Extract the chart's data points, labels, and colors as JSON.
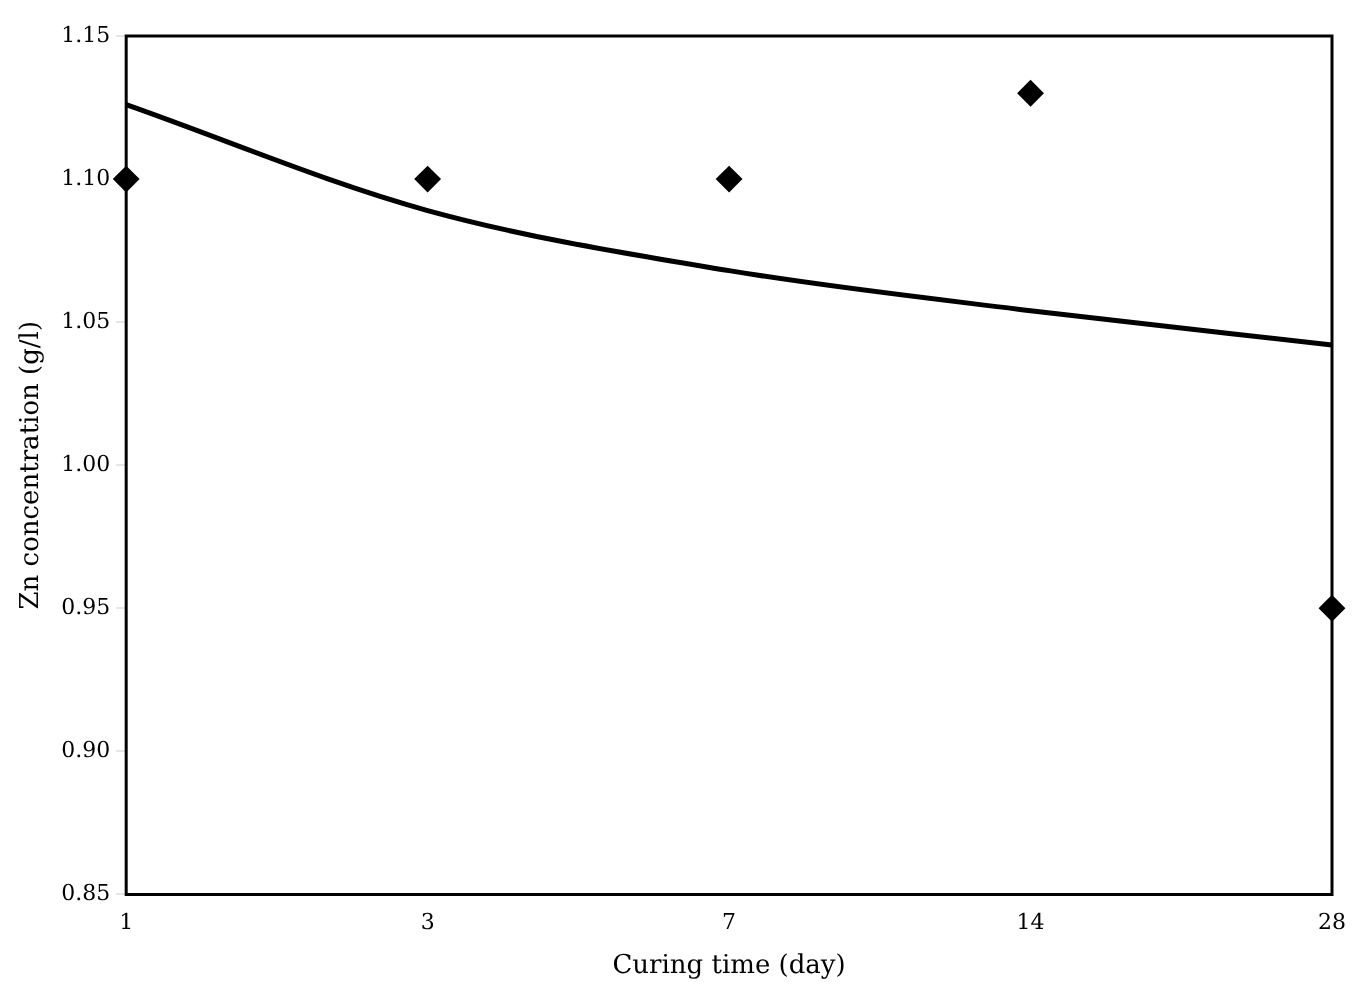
{
  "chart_data": {
    "type": "scatter",
    "xlabel": "Curing time (day)",
    "ylabel": "Zn concentration (g/l)",
    "categories": [
      "1",
      "3",
      "7",
      "14",
      "28"
    ],
    "series": [
      {
        "color": "#000000",
        "marker": "diamond",
        "values": [
          1.1,
          1.1,
          1.1,
          1.13,
          0.95
        ]
      },
      {
        "type": "line",
        "color": "#000000",
        "marker": "none",
        "values": [
          1.126,
          1.089,
          1.068,
          1.054,
          1.042
        ]
      }
    ],
    "ylim": [
      0.85,
      1.15
    ],
    "yticks": [
      {
        "value": 0.85,
        "label": "0.85"
      },
      {
        "value": 0.9,
        "label": "0.90"
      },
      {
        "value": 0.95,
        "label": "0.95"
      },
      {
        "value": 1.0,
        "label": "1.00"
      },
      {
        "value": 1.05,
        "label": "1.05"
      },
      {
        "value": 1.1,
        "label": "1.10"
      },
      {
        "value": 1.15,
        "label": "1.15"
      }
    ],
    "line_style": "solid",
    "grid": false,
    "legend": false
  }
}
